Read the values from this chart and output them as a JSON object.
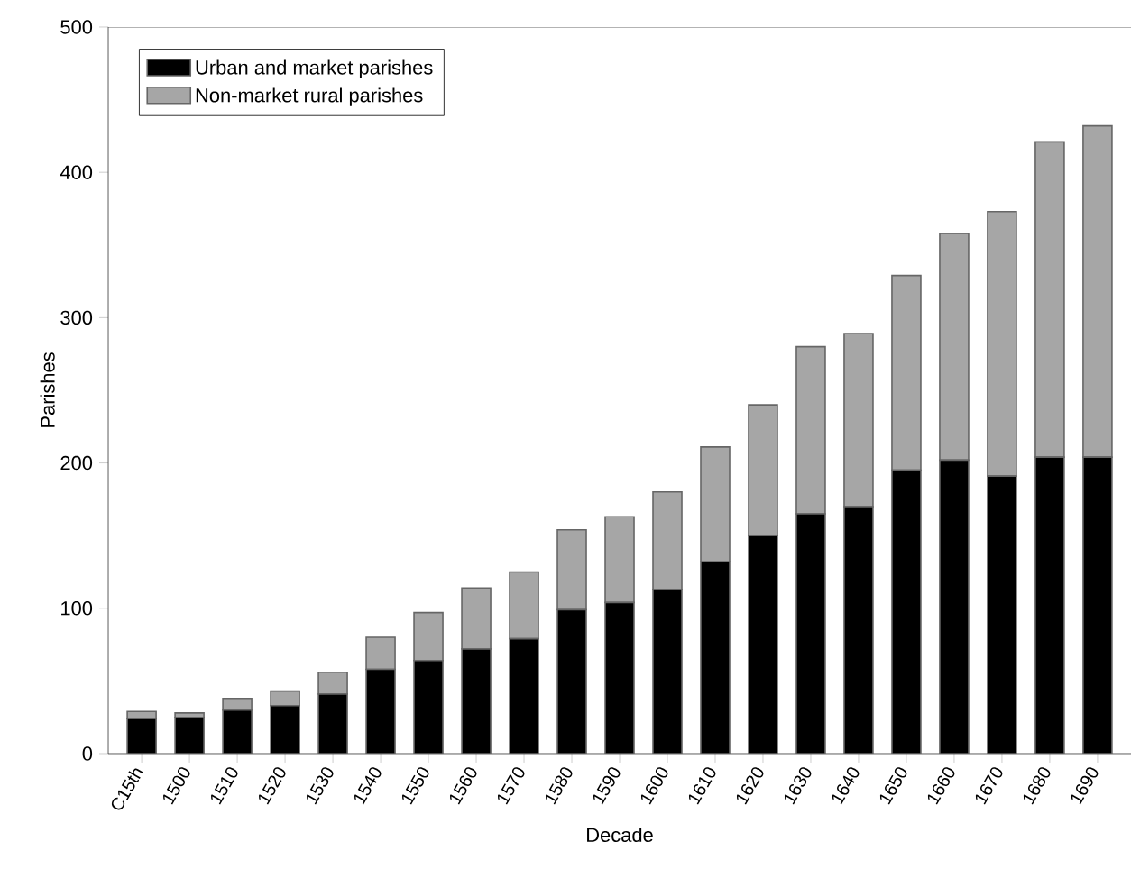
{
  "chart_data": {
    "type": "bar",
    "stacked": true,
    "xlabel": "Decade",
    "ylabel": "Parishes",
    "categories": [
      "C15th",
      "1500",
      "1510",
      "1520",
      "1530",
      "1540",
      "1550",
      "1560",
      "1570",
      "1580",
      "1590",
      "1600",
      "1610",
      "1620",
      "1630",
      "1640",
      "1650",
      "1660",
      "1670",
      "1680",
      "1690"
    ],
    "series": [
      {
        "name": "Urban and market parishes",
        "color": "#000000",
        "values": [
          24,
          25,
          30,
          33,
          41,
          58,
          64,
          72,
          79,
          99,
          104,
          113,
          132,
          150,
          165,
          170,
          195,
          202,
          191,
          204,
          204
        ]
      },
      {
        "name": "Non-market rural parishes",
        "color": "#a6a6a6",
        "values": [
          5,
          3,
          8,
          10,
          15,
          22,
          33,
          42,
          46,
          55,
          59,
          67,
          79,
          90,
          115,
          119,
          134,
          156,
          182,
          217,
          228
        ]
      }
    ],
    "ylim": [
      0,
      500
    ],
    "yticks": [
      0,
      100,
      200,
      300,
      400,
      500
    ],
    "legend": "top left"
  }
}
